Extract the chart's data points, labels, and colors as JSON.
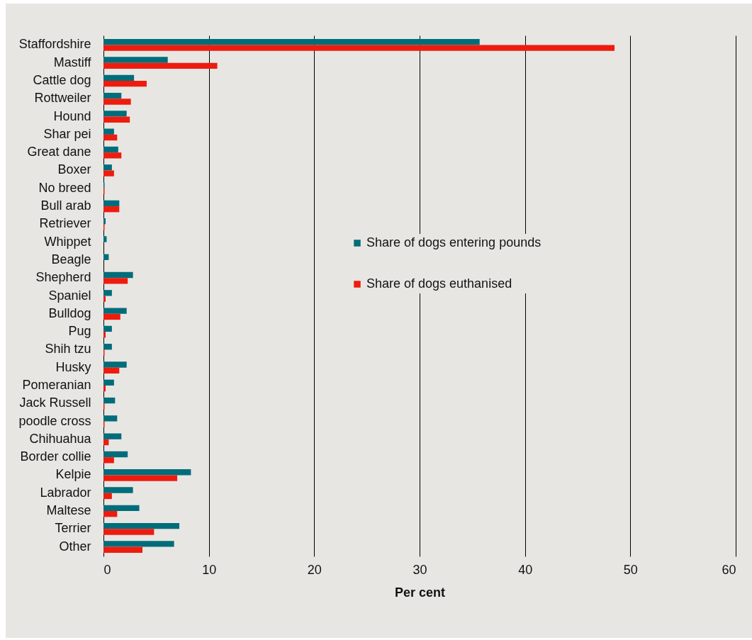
{
  "chart_data": {
    "type": "bar",
    "orientation": "horizontal",
    "xlabel": "Per cent",
    "categories": [
      "Staffordshire",
      "Mastiff",
      "Cattle dog",
      "Rottweiler",
      "Hound",
      "Shar pei",
      "Great dane",
      "Boxer",
      "No breed",
      "Bull arab",
      "Retriever",
      "Whippet",
      "Beagle",
      "Shepherd",
      "Spaniel",
      "Bulldog",
      "Pug",
      "Shih tzu",
      "Husky",
      "Pomeranian",
      "Jack Russell",
      "poodle cross",
      "Chihuahua",
      "Border collie",
      "Kelpie",
      "Labrador",
      "Maltese",
      "Terrier",
      "Other"
    ],
    "series": [
      {
        "name": "Share of dogs entering pounds",
        "color": "#006d7a",
        "values": [
          35.7,
          6.1,
          2.9,
          1.7,
          2.2,
          1.0,
          1.4,
          0.8,
          0.1,
          1.5,
          0.2,
          0.3,
          0.5,
          2.8,
          0.8,
          2.2,
          0.8,
          0.8,
          2.2,
          1.0,
          1.1,
          1.3,
          1.7,
          2.3,
          8.3,
          2.8,
          3.4,
          7.2,
          6.7
        ]
      },
      {
        "name": "Share of dogs euthanised",
        "color": "#ee1c0e",
        "values": [
          48.5,
          10.8,
          4.1,
          2.6,
          2.5,
          1.3,
          1.7,
          1.0,
          0.1,
          1.5,
          0.1,
          0,
          0,
          2.3,
          0.2,
          1.6,
          0.2,
          0.1,
          1.5,
          0.2,
          0.1,
          0.1,
          0.5,
          1.0,
          7.0,
          0.8,
          1.3,
          4.8,
          3.7
        ]
      }
    ],
    "xlim": [
      0,
      60
    ],
    "xticks": [
      0,
      10,
      20,
      30,
      40,
      50,
      60
    ],
    "grid": "x",
    "legend": "right"
  }
}
